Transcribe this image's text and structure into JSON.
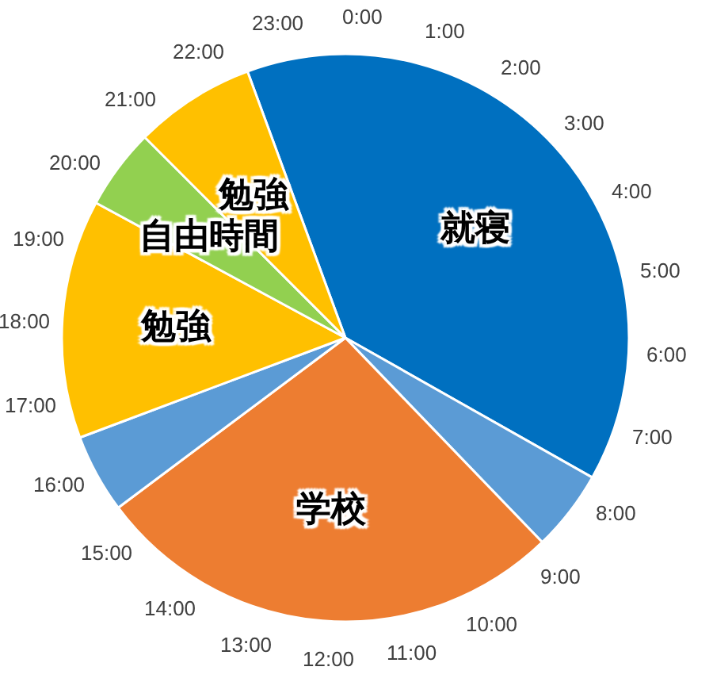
{
  "chart_data": {
    "type": "pie",
    "categories": [
      "就寝",
      null,
      "学校",
      null,
      "勉強",
      "自由時間",
      "勉強"
    ],
    "values": [
      38.8,
      4.6,
      27.0,
      4.5,
      13.6,
      4.6,
      6.9
    ],
    "colors": [
      "#0070c0",
      "#5b9bd5",
      "#ed7d31",
      "#5b9bd5",
      "#ffc000",
      "#92d050",
      "#ffc000"
    ],
    "annotations": [
      "0:00",
      "1:00",
      "2:00",
      "3:00",
      "4:00",
      "5:00",
      "6:00",
      "7:00",
      "8:00",
      "9:00",
      "10:00",
      "11:00",
      "12:00",
      "13:00",
      "14:00",
      "15:00",
      "16:00",
      "17:00",
      "18:00",
      "19:00",
      "20:00",
      "21:00",
      "22:00",
      "23:00"
    ]
  }
}
